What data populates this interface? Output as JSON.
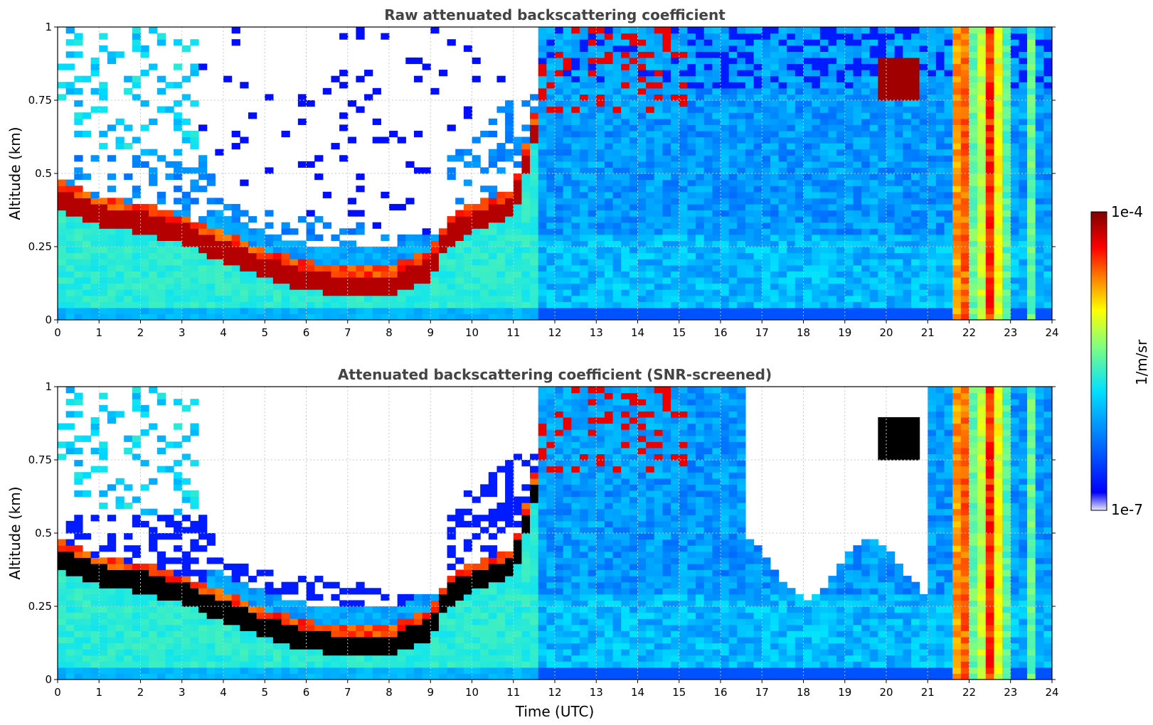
{
  "chart_data": [
    {
      "type": "heatmap",
      "title": "Raw attenuated backscattering coefficient",
      "ylabel": "Altitude (km)",
      "xlabel": "",
      "xlim": [
        0,
        24
      ],
      "ylim": [
        0,
        1
      ],
      "x_ticks": [
        "0",
        "1",
        "2",
        "3",
        "4",
        "5",
        "6",
        "7",
        "8",
        "9",
        "10",
        "11",
        "12",
        "13",
        "14",
        "15",
        "16",
        "17",
        "18",
        "19",
        "20",
        "21",
        "22",
        "23",
        "24"
      ],
      "y_ticks": [
        "0",
        "0.25",
        "0.5",
        "0.75",
        "1"
      ],
      "grid": true,
      "colormap": "jet",
      "screened": false
    },
    {
      "type": "heatmap",
      "title": "Attenuated backscattering coefficient (SNR-screened)",
      "ylabel": "Altitude (km)",
      "xlabel": "Time (UTC)",
      "xlim": [
        0,
        24
      ],
      "ylim": [
        0,
        1
      ],
      "x_ticks": [
        "0",
        "1",
        "2",
        "3",
        "4",
        "5",
        "6",
        "7",
        "8",
        "9",
        "10",
        "11",
        "12",
        "13",
        "14",
        "15",
        "16",
        "17",
        "18",
        "19",
        "20",
        "21",
        "22",
        "23",
        "24"
      ],
      "y_ticks": [
        "0",
        "0.25",
        "0.5",
        "0.75",
        "1"
      ],
      "grid": true,
      "colormap": "jet",
      "screened": true
    }
  ],
  "colorbar": {
    "label": "1/m/sr",
    "max_label": "1e-4",
    "min_label": "1e-7",
    "range": [
      1e-07,
      0.0001
    ],
    "scale": "log",
    "colors": [
      "#e8e8f8",
      "#0000ff",
      "#0080ff",
      "#00e0ff",
      "#80ff80",
      "#ffff00",
      "#ff8000",
      "#ff0000",
      "#800000"
    ]
  }
}
